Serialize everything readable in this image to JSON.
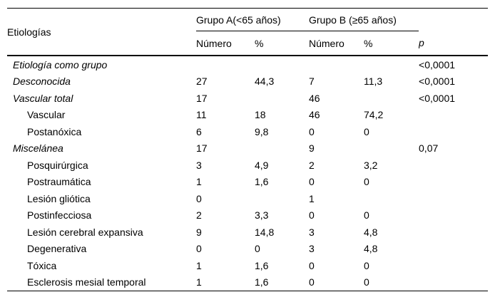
{
  "table": {
    "title_col_header": "Etiologías",
    "group_a_header": "Grupo A(<65 años)",
    "group_b_header": "Grupo B (≥65 años)",
    "sub_headers": {
      "a_numero": "Número",
      "a_pct": "%",
      "b_numero": "Número",
      "b_pct": "%",
      "p": "p"
    },
    "rows": [
      {
        "label": "Etiología como grupo",
        "level": "group",
        "a_numero": "",
        "a_pct": "",
        "b_numero": "",
        "b_pct": "",
        "p": "<0,0001"
      },
      {
        "label": "Desconocida",
        "level": "group",
        "a_numero": "27",
        "a_pct": "44,3",
        "b_numero": "7",
        "b_pct": "11,3",
        "p": "<0,0001"
      },
      {
        "label": "Vascular total",
        "level": "group",
        "a_numero": "17",
        "a_pct": "",
        "b_numero": "46",
        "b_pct": "",
        "p": "<0,0001"
      },
      {
        "label": "Vascular",
        "level": "sub",
        "a_numero": "11",
        "a_pct": "18",
        "b_numero": "46",
        "b_pct": "74,2",
        "p": ""
      },
      {
        "label": "Postanóxica",
        "level": "sub",
        "a_numero": "6",
        "a_pct": "9,8",
        "b_numero": "0",
        "b_pct": "0",
        "p": ""
      },
      {
        "label": "Miscelánea",
        "level": "group",
        "a_numero": "17",
        "a_pct": "",
        "b_numero": "9",
        "b_pct": "",
        "p": "0,07"
      },
      {
        "label": "Posquirúrgica",
        "level": "sub",
        "a_numero": "3",
        "a_pct": "4,9",
        "b_numero": "2",
        "b_pct": "3,2",
        "p": ""
      },
      {
        "label": "Postraumática",
        "level": "sub",
        "a_numero": "1",
        "a_pct": "1,6",
        "b_numero": "0",
        "b_pct": "0",
        "p": ""
      },
      {
        "label": "Lesión gliótica",
        "level": "sub",
        "a_numero": "0",
        "a_pct": "",
        "b_numero": "1",
        "b_pct": "",
        "p": ""
      },
      {
        "label": "Postinfecciosa",
        "level": "sub",
        "a_numero": "2",
        "a_pct": "3,3",
        "b_numero": "0",
        "b_pct": "0",
        "p": ""
      },
      {
        "label": "Lesión cerebral expansiva",
        "level": "sub",
        "a_numero": "9",
        "a_pct": "14,8",
        "b_numero": "3",
        "b_pct": "4,8",
        "p": ""
      },
      {
        "label": "Degenerativa",
        "level": "sub",
        "a_numero": "0",
        "a_pct": "0",
        "b_numero": "3",
        "b_pct": "4,8",
        "p": ""
      },
      {
        "label": "Tóxica",
        "level": "sub",
        "a_numero": "1",
        "a_pct": "1,6",
        "b_numero": "0",
        "b_pct": "0",
        "p": ""
      },
      {
        "label": "Esclerosis mesial temporal",
        "level": "sub",
        "a_numero": "1",
        "a_pct": "1,6",
        "b_numero": "0",
        "b_pct": "0",
        "p": ""
      }
    ],
    "colors": {
      "text": "#000000",
      "background": "#ffffff",
      "border": "#000000"
    }
  }
}
